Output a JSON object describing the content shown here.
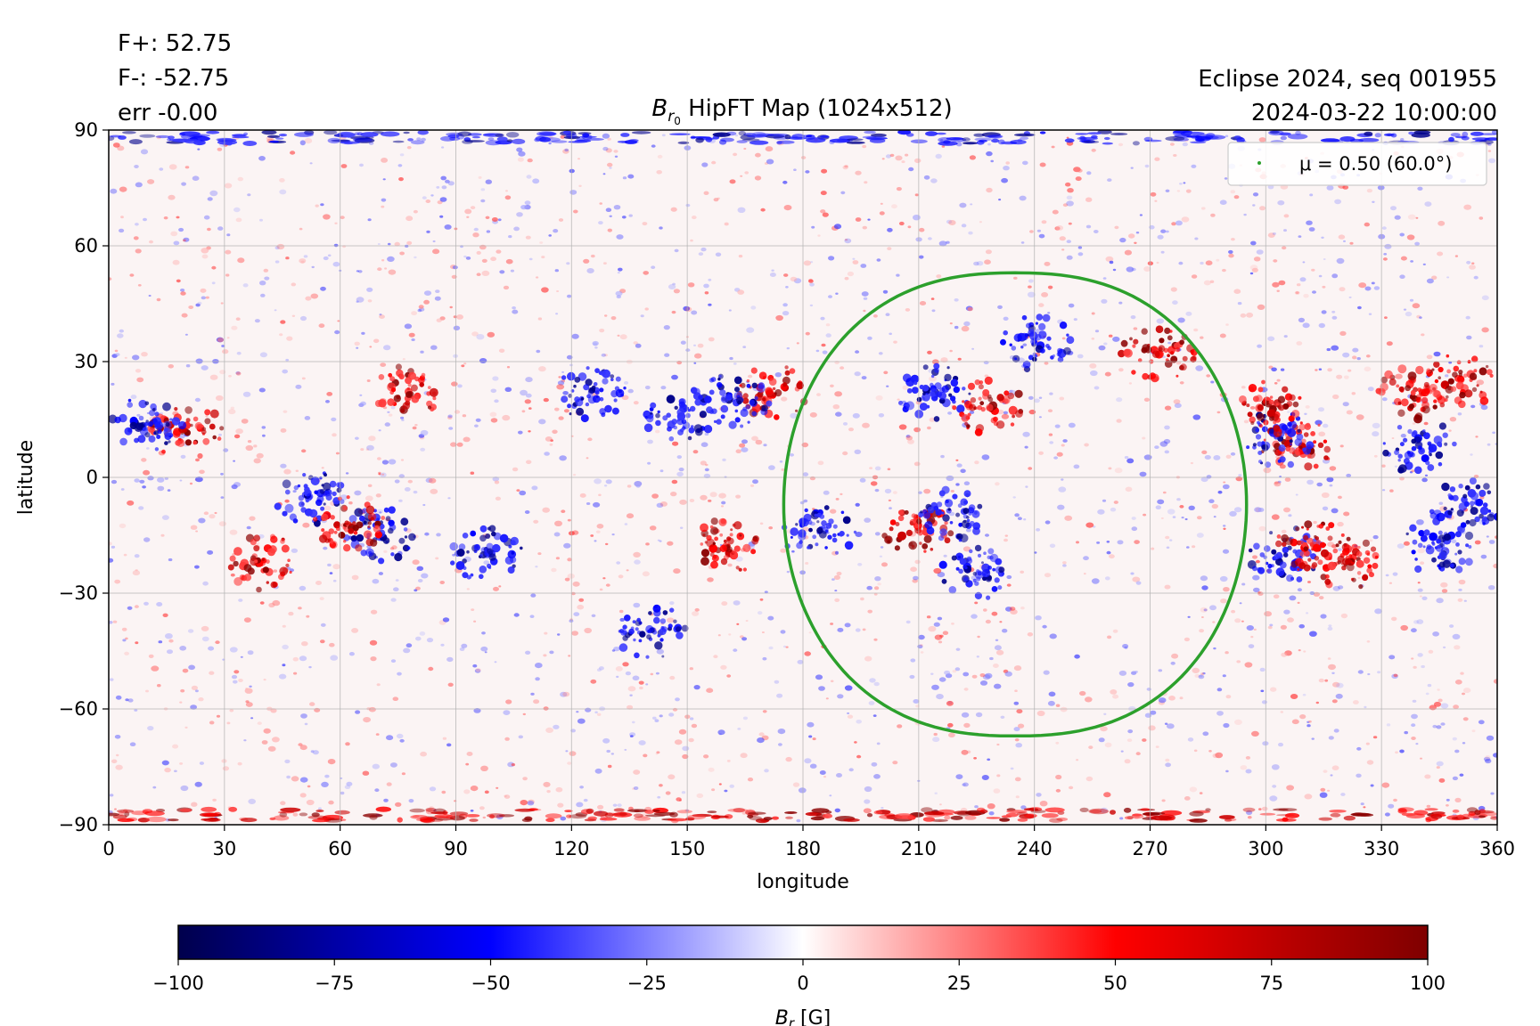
{
  "header": {
    "flux_pos": "F+: 52.75",
    "flux_neg": "F-: -52.75",
    "err": "err -0.00",
    "title_symbol": "B",
    "title_subscript": "r",
    "title_subsub": "0",
    "title_rest": " HipFT Map (1024x512)",
    "event": "Eclipse 2024, seq 001955",
    "datetime": "2024-03-22 10:00:00"
  },
  "chart_data": {
    "type": "heatmap",
    "xlabel": "longitude",
    "ylabel": "latitude",
    "xlim": [
      0,
      360
    ],
    "ylim": [
      -90,
      90
    ],
    "xticks": [
      "0",
      "30",
      "60",
      "90",
      "120",
      "150",
      "180",
      "210",
      "240",
      "270",
      "300",
      "330",
      "360"
    ],
    "yticks": [
      "90",
      "60",
      "30",
      "0",
      "−30",
      "−60",
      "−90"
    ],
    "xtick_values": [
      0,
      30,
      60,
      90,
      120,
      150,
      180,
      210,
      240,
      270,
      300,
      330,
      360
    ],
    "ytick_values": [
      90,
      60,
      30,
      0,
      -30,
      -60,
      -90
    ],
    "grid": true,
    "legend": {
      "position": "top-right",
      "label": "μ = 0.50 (60.0°)"
    },
    "mu_contour": {
      "color": "#2ca02c",
      "center_lon": 235,
      "center_lat": -7,
      "lon_halfwidth": 60,
      "lat_top": 53,
      "lat_bottom": -67
    },
    "regions": [
      {
        "lon": 20,
        "lat": 12,
        "sign": "+"
      },
      {
        "lon": 10,
        "lat": 14,
        "sign": "-"
      },
      {
        "lon": 40,
        "lat": -22,
        "sign": "+"
      },
      {
        "lon": 52,
        "lat": -5,
        "sign": "-"
      },
      {
        "lon": 70,
        "lat": -15,
        "sign": "-"
      },
      {
        "lon": 62,
        "lat": -12,
        "sign": "+"
      },
      {
        "lon": 98,
        "lat": -20,
        "sign": "-"
      },
      {
        "lon": 78,
        "lat": 22,
        "sign": "+"
      },
      {
        "lon": 125,
        "lat": 22,
        "sign": "-"
      },
      {
        "lon": 148,
        "lat": 16,
        "sign": "-"
      },
      {
        "lon": 172,
        "lat": 22,
        "sign": "+"
      },
      {
        "lon": 162,
        "lat": 20,
        "sign": "-"
      },
      {
        "lon": 160,
        "lat": -18,
        "sign": "+"
      },
      {
        "lon": 140,
        "lat": -40,
        "sign": "-"
      },
      {
        "lon": 214,
        "lat": 22,
        "sign": "-"
      },
      {
        "lon": 228,
        "lat": 18,
        "sign": "+"
      },
      {
        "lon": 184,
        "lat": -14,
        "sign": "-"
      },
      {
        "lon": 210,
        "lat": -14,
        "sign": "+"
      },
      {
        "lon": 220,
        "lat": -10,
        "sign": "-"
      },
      {
        "lon": 225,
        "lat": -25,
        "sign": "-"
      },
      {
        "lon": 240,
        "lat": 35,
        "sign": "-"
      },
      {
        "lon": 272,
        "lat": 32,
        "sign": "+"
      },
      {
        "lon": 308,
        "lat": 8,
        "sign": "+"
      },
      {
        "lon": 303,
        "lat": 10,
        "sign": "-"
      },
      {
        "lon": 305,
        "lat": -20,
        "sign": "-"
      },
      {
        "lon": 312,
        "lat": -18,
        "sign": "+"
      },
      {
        "lon": 322,
        "lat": -22,
        "sign": "+"
      },
      {
        "lon": 345,
        "lat": -18,
        "sign": "-"
      },
      {
        "lon": 338,
        "lat": 22,
        "sign": "+"
      },
      {
        "lon": 350,
        "lat": 25,
        "sign": "+"
      },
      {
        "lon": 340,
        "lat": 8,
        "sign": "-"
      },
      {
        "lon": 302,
        "lat": 18,
        "sign": "+"
      },
      {
        "lon": 352,
        "lat": -8,
        "sign": "-"
      }
    ],
    "polar_bands": [
      {
        "lat": 88,
        "sign": "-"
      },
      {
        "lat": -87.5,
        "sign": "+"
      }
    ]
  },
  "colorbar": {
    "min": -100,
    "max": 100,
    "ticks": [
      "−100",
      "−75",
      "−50",
      "−25",
      "0",
      "25",
      "50",
      "75",
      "100"
    ],
    "tick_values": [
      -100,
      -75,
      -50,
      -25,
      0,
      25,
      50,
      75,
      100
    ],
    "label_symbol": "B",
    "label_subscript": "r",
    "label_unit": " [G]",
    "colors": [
      "#00004c",
      "#0000ff",
      "#ffffff",
      "#ff0000",
      "#7f0000"
    ]
  }
}
